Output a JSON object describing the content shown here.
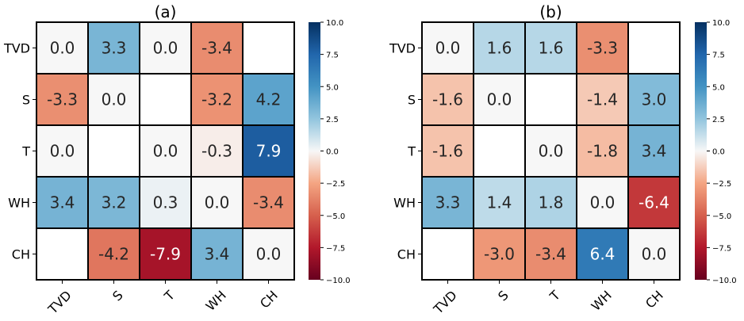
{
  "chart_data": [
    {
      "type": "heatmap",
      "title": "(a)",
      "rows": [
        "TVD",
        "S",
        "T",
        "WH",
        "CH"
      ],
      "cols": [
        "TVD",
        "S",
        "T",
        "WH",
        "CH"
      ],
      "values": [
        [
          0.0,
          3.3,
          0.0,
          -3.4,
          null
        ],
        [
          -3.3,
          0.0,
          null,
          -3.2,
          4.2
        ],
        [
          0.0,
          null,
          0.0,
          -0.3,
          7.9
        ],
        [
          3.4,
          3.2,
          0.3,
          0.0,
          -3.4
        ],
        [
          null,
          -4.2,
          -7.9,
          3.4,
          0.0
        ]
      ],
      "value_labels": [
        [
          "0.0",
          "3.3",
          "0.0",
          "-3.4",
          ""
        ],
        [
          "-3.3",
          "0.0",
          "",
          "-3.2",
          "4.2"
        ],
        [
          "0.0",
          "",
          "0.0",
          "-0.3",
          "7.9"
        ],
        [
          "3.4",
          "3.2",
          "0.3",
          "0.0",
          "-3.4"
        ],
        [
          "",
          "-4.2",
          "-7.9",
          "3.4",
          "0.0"
        ]
      ],
      "colormap": "RdBu",
      "vmin": -10.0,
      "vmax": 10.0,
      "colorbar_ticks": [
        "10.0",
        "7.5",
        "5.0",
        "2.5",
        "0.0",
        "−2.5",
        "−5.0",
        "−7.5",
        "−10.0"
      ],
      "colorbar_tick_values": [
        10.0,
        7.5,
        5.0,
        2.5,
        0.0,
        -2.5,
        -5.0,
        -7.5,
        -10.0
      ]
    },
    {
      "type": "heatmap",
      "title": "(b)",
      "rows": [
        "TVD",
        "S",
        "T",
        "WH",
        "CH"
      ],
      "cols": [
        "TVD",
        "S",
        "T",
        "WH",
        "CH"
      ],
      "values": [
        [
          0.0,
          1.6,
          1.6,
          -3.3,
          null
        ],
        [
          -1.6,
          0.0,
          null,
          -1.4,
          3.0
        ],
        [
          -1.6,
          null,
          0.0,
          -1.8,
          3.4
        ],
        [
          3.3,
          1.4,
          1.8,
          0.0,
          -6.4
        ],
        [
          null,
          -3.0,
          -3.4,
          6.4,
          0.0
        ]
      ],
      "value_labels": [
        [
          "0.0",
          "1.6",
          "1.6",
          "-3.3",
          ""
        ],
        [
          "-1.6",
          "0.0",
          "",
          "-1.4",
          "3.0"
        ],
        [
          "-1.6",
          "",
          "0.0",
          "-1.8",
          "3.4"
        ],
        [
          "3.3",
          "1.4",
          "1.8",
          "0.0",
          "-6.4"
        ],
        [
          "",
          "-3.0",
          "-3.4",
          "6.4",
          "0.0"
        ]
      ],
      "colormap": "RdBu",
      "vmin": -10.0,
      "vmax": 10.0,
      "colorbar_ticks": [
        "10.0",
        "7.5",
        "5.0",
        "2.5",
        "0.0",
        "−2.5",
        "−5.0",
        "−7.5",
        "−10.0"
      ],
      "colorbar_tick_values": [
        10.0,
        7.5,
        5.0,
        2.5,
        0.0,
        -2.5,
        -5.0,
        -7.5,
        -10.0
      ]
    }
  ]
}
